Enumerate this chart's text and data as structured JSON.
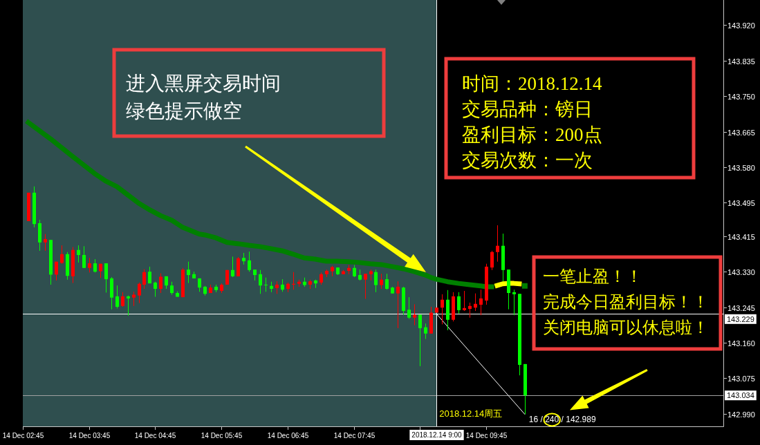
{
  "chart_data": {
    "type": "candlestick",
    "x": [
      "2018-12-14T02:50",
      "2018-12-14T02:55",
      "2018-12-14T03:00",
      "2018-12-14T03:05",
      "2018-12-14T03:10",
      "2018-12-14T03:15",
      "2018-12-14T03:20",
      "2018-12-14T03:25",
      "2018-12-14T03:30",
      "2018-12-14T03:35",
      "2018-12-14T03:40",
      "2018-12-14T03:45",
      "2018-12-14T03:50",
      "2018-12-14T03:55",
      "2018-12-14T04:00",
      "2018-12-14T04:05",
      "2018-12-14T04:10",
      "2018-12-14T04:15",
      "2018-12-14T04:20",
      "2018-12-14T04:25",
      "2018-12-14T04:30",
      "2018-12-14T04:35",
      "2018-12-14T04:40",
      "2018-12-14T04:45",
      "2018-12-14T04:50",
      "2018-12-14T04:55",
      "2018-12-14T05:00",
      "2018-12-14T05:05",
      "2018-12-14T05:10",
      "2018-12-14T05:15",
      "2018-12-14T05:20",
      "2018-12-14T05:25",
      "2018-12-14T05:30",
      "2018-12-14T05:35",
      "2018-12-14T05:40",
      "2018-12-14T05:45",
      "2018-12-14T05:50",
      "2018-12-14T05:55",
      "2018-12-14T06:00",
      "2018-12-14T06:05",
      "2018-12-14T06:10",
      "2018-12-14T06:15",
      "2018-12-14T06:20",
      "2018-12-14T06:25",
      "2018-12-14T06:30",
      "2018-12-14T06:35",
      "2018-12-14T06:40",
      "2018-12-14T06:45",
      "2018-12-14T06:50",
      "2018-12-14T06:55",
      "2018-12-14T07:00",
      "2018-12-14T07:05",
      "2018-12-14T07:10",
      "2018-12-14T07:15",
      "2018-12-14T07:20",
      "2018-12-14T07:25",
      "2018-12-14T07:30",
      "2018-12-14T07:35",
      "2018-12-14T07:40",
      "2018-12-14T07:45",
      "2018-12-14T07:50",
      "2018-12-14T07:55",
      "2018-12-14T08:00",
      "2018-12-14T08:05",
      "2018-12-14T08:10",
      "2018-12-14T08:15",
      "2018-12-14T08:20",
      "2018-12-14T08:25",
      "2018-12-14T08:30",
      "2018-12-14T08:35",
      "2018-12-14T08:40",
      "2018-12-14T08:45",
      "2018-12-14T08:50",
      "2018-12-14T08:55",
      "2018-12-14T09:00",
      "2018-12-14T09:05",
      "2018-12-14T09:10",
      "2018-12-14T09:15",
      "2018-12-14T09:20",
      "2018-12-14T09:25",
      "2018-12-14T09:30",
      "2018-12-14T09:35",
      "2018-12-14T09:40",
      "2018-12-14T09:45",
      "2018-12-14T09:50",
      "2018-12-14T09:55",
      "2018-12-14T10:00",
      "2018-12-14T10:05",
      "2018-12-14T10:10",
      "2018-12-14T10:15",
      "2018-12-14T10:20"
    ],
    "ohlc": [
      [
        143.451,
        143.519,
        143.451,
        143.519
      ],
      [
        143.519,
        143.534,
        143.436,
        143.444
      ],
      [
        143.446,
        143.454,
        143.38,
        143.4
      ],
      [
        143.4,
        143.42,
        143.38,
        143.408
      ],
      [
        143.406,
        143.406,
        143.299,
        143.323
      ],
      [
        143.323,
        143.354,
        143.309,
        143.354
      ],
      [
        143.351,
        143.393,
        143.349,
        143.372
      ],
      [
        143.372,
        143.377,
        143.311,
        143.32
      ],
      [
        143.319,
        143.389,
        143.303,
        143.382
      ],
      [
        143.382,
        143.393,
        143.352,
        143.37
      ],
      [
        143.37,
        143.391,
        143.339,
        143.339
      ],
      [
        143.339,
        143.363,
        143.328,
        143.35
      ],
      [
        143.35,
        143.36,
        143.328,
        143.33
      ],
      [
        143.331,
        143.349,
        143.315,
        143.349
      ],
      [
        143.35,
        143.35,
        143.28,
        143.312
      ],
      [
        143.314,
        143.317,
        143.24,
        143.268
      ],
      [
        143.271,
        143.297,
        143.242,
        143.246
      ],
      [
        143.248,
        143.281,
        143.246,
        143.271
      ],
      [
        143.271,
        143.273,
        143.225,
        143.266
      ],
      [
        143.268,
        143.282,
        143.248,
        143.275
      ],
      [
        143.273,
        143.304,
        143.255,
        143.301
      ],
      [
        143.299,
        143.336,
        143.289,
        143.329
      ],
      [
        143.33,
        143.342,
        143.302,
        143.302
      ],
      [
        143.304,
        143.306,
        143.27,
        143.289
      ],
      [
        143.289,
        143.326,
        143.279,
        143.318
      ],
      [
        143.319,
        143.319,
        143.289,
        143.297
      ],
      [
        143.297,
        143.306,
        143.275,
        143.279
      ],
      [
        143.279,
        143.283,
        143.27,
        143.27
      ],
      [
        143.269,
        143.339,
        143.269,
        143.335
      ],
      [
        143.335,
        143.354,
        143.303,
        143.322
      ],
      [
        143.324,
        143.33,
        143.314,
        143.314
      ],
      [
        143.314,
        143.314,
        143.282,
        143.292
      ],
      [
        143.294,
        143.296,
        143.273,
        143.277
      ],
      [
        143.279,
        143.299,
        143.279,
        143.292
      ],
      [
        143.294,
        143.299,
        143.281,
        143.286
      ],
      [
        143.284,
        143.302,
        143.279,
        143.299
      ],
      [
        143.299,
        143.334,
        143.299,
        143.334
      ],
      [
        143.334,
        143.366,
        143.317,
        143.319
      ],
      [
        143.319,
        143.365,
        143.319,
        143.362
      ],
      [
        143.363,
        143.375,
        143.347,
        143.355
      ],
      [
        143.357,
        143.378,
        143.33,
        143.334
      ],
      [
        143.335,
        143.335,
        143.309,
        143.322
      ],
      [
        143.324,
        143.334,
        143.277,
        143.297
      ],
      [
        143.299,
        143.316,
        143.282,
        143.298
      ],
      [
        143.296,
        143.306,
        143.281,
        143.289
      ],
      [
        143.291,
        143.307,
        143.277,
        143.299
      ],
      [
        143.299,
        143.312,
        143.282,
        143.287
      ],
      [
        143.289,
        143.304,
        143.281,
        143.301
      ],
      [
        143.299,
        143.329,
        143.287,
        143.301
      ],
      [
        143.301,
        143.311,
        143.294,
        143.306
      ],
      [
        143.306,
        143.316,
        143.294,
        143.298
      ],
      [
        143.299,
        143.311,
        143.289,
        143.307
      ],
      [
        143.309,
        143.311,
        143.291,
        143.302
      ],
      [
        143.304,
        143.328,
        143.299,
        143.324
      ],
      [
        143.324,
        143.335,
        143.317,
        143.332
      ],
      [
        143.331,
        143.344,
        143.319,
        143.341
      ],
      [
        143.34,
        143.34,
        143.322,
        143.324
      ],
      [
        143.324,
        143.334,
        143.324,
        143.331
      ],
      [
        143.332,
        143.346,
        143.324,
        143.339
      ],
      [
        143.339,
        143.346,
        143.317,
        143.319
      ],
      [
        143.322,
        143.335,
        143.309,
        143.311
      ],
      [
        143.311,
        143.325,
        143.265,
        143.325
      ],
      [
        143.324,
        143.335,
        143.309,
        143.331
      ],
      [
        143.329,
        143.335,
        143.281,
        143.298
      ],
      [
        143.298,
        143.325,
        143.289,
        143.311
      ],
      [
        143.312,
        143.325,
        143.287,
        143.289
      ],
      [
        143.292,
        143.294,
        143.278,
        143.278
      ],
      [
        143.278,
        143.307,
        143.195,
        143.294
      ],
      [
        143.292,
        143.294,
        143.227,
        143.236
      ],
      [
        143.239,
        143.269,
        143.217,
        143.22
      ],
      [
        143.22,
        143.252,
        143.202,
        143.227
      ],
      [
        143.227,
        143.227,
        143.104,
        143.195
      ],
      [
        143.197,
        143.206,
        143.169,
        143.182
      ],
      [
        143.182,
        143.246,
        143.182,
        143.232
      ],
      [
        143.232,
        143.244,
        143.232,
        143.244
      ],
      [
        143.244,
        143.276,
        143.204,
        143.263
      ],
      [
        143.263,
        143.286,
        143.19,
        143.215
      ],
      [
        143.215,
        143.281,
        143.211,
        143.271
      ],
      [
        143.271,
        143.281,
        143.23,
        143.238
      ],
      [
        143.238,
        143.284,
        143.236,
        143.243
      ],
      [
        143.241,
        143.256,
        143.22,
        143.248
      ],
      [
        143.244,
        143.278,
        143.236,
        143.253
      ],
      [
        143.251,
        143.287,
        143.226,
        143.266
      ],
      [
        143.261,
        143.349,
        143.251,
        143.342
      ],
      [
        143.34,
        143.38,
        143.334,
        143.377
      ],
      [
        143.377,
        143.441,
        143.354,
        143.392
      ],
      [
        143.392,
        143.421,
        143.307,
        143.334
      ],
      [
        143.335,
        143.335,
        143.24,
        143.279
      ],
      [
        143.281,
        143.287,
        143.226,
        143.276
      ],
      [
        143.277,
        143.277,
        143.082,
        143.107
      ],
      [
        143.109,
        143.109,
        142.989,
        143.034
      ]
    ],
    "colors": [
      "#ff0000",
      "#00ff00",
      "#00ff00",
      "#ff0000",
      "#00ff00",
      "#ff0000",
      "#ff0000",
      "#00ff00",
      "#ff0000",
      "#00ff00",
      "#00ff00",
      "#ff0000",
      "#00ff00",
      "#ff0000",
      "#00ff00",
      "#00ff00",
      "#00ff00",
      "#ff0000",
      "#00ff00",
      "#ff0000",
      "#ff0000",
      "#ff0000",
      "#00ff00",
      "#00ff00",
      "#ff0000",
      "#00ff00",
      "#00ff00",
      "#00ff00",
      "#ff0000",
      "#00ff00",
      "#00ff00",
      "#00ff00",
      "#00ff00",
      "#ff0000",
      "#00ff00",
      "#ff0000",
      "#ff0000",
      "#00ff00",
      "#ff0000",
      "#00ff00",
      "#00ff00",
      "#00ff00",
      "#00ff00",
      "#00ff00",
      "#00ff00",
      "#ff0000",
      "#00ff00",
      "#ff0000",
      "#ff0000",
      "#ff0000",
      "#00ff00",
      "#ff0000",
      "#00ff00",
      "#ff0000",
      "#ff0000",
      "#ff0000",
      "#00ff00",
      "#ff0000",
      "#ff0000",
      "#00ff00",
      "#00ff00",
      "#ff0000",
      "#ff0000",
      "#00ff00",
      "#ff0000",
      "#00ff00",
      "#00ff00",
      "#ff0000",
      "#00ff00",
      "#00ff00",
      "#ff0000",
      "#00ff00",
      "#00ff00",
      "#ff0000",
      "#ff0000",
      "#ff0000",
      "#00ff00",
      "#ff0000",
      "#00ff00",
      "#ff0000",
      "#ff0000",
      "#ff0000",
      "#ff0000",
      "#ff0000",
      "#ff0000",
      "#ff0000",
      "#00ff00",
      "#00ff00",
      "#00ff00",
      "#00ff00",
      "#00ff00"
    ],
    "series": [
      {
        "type": "line",
        "color": "#008000",
        "x": [
          "2018-12-14T02:50",
          "2018-12-14T03:10",
          "2018-12-14T03:30",
          "2018-12-14T03:50",
          "2018-12-14T04:00",
          "2018-12-14T04:10",
          "2018-12-14T04:20",
          "2018-12-14T04:30",
          "2018-12-14T04:40",
          "2018-12-14T04:50",
          "2018-12-14T05:00",
          "2018-12-14T05:10",
          "2018-12-14T05:25",
          "2018-12-14T05:30",
          "2018-12-14T05:40",
          "2018-12-14T05:50",
          "2018-12-14T06:00",
          "2018-12-14T06:10",
          "2018-12-14T06:20",
          "2018-12-14T06:30",
          "2018-12-14T06:40",
          "2018-12-14T06:50",
          "2018-12-14T07:00",
          "2018-12-14T07:10",
          "2018-12-14T07:20",
          "2018-12-14T07:30",
          "2018-12-14T07:40",
          "2018-12-14T07:50",
          "2018-12-14T08:00",
          "2018-12-14T08:10",
          "2018-12-14T08:20",
          "2018-12-14T08:30",
          "2018-12-14T08:40",
          "2018-12-14T08:50",
          "2018-12-14T08:55",
          "2018-12-14T09:00",
          "2018-12-14T09:10",
          "2018-12-14T09:20",
          "2018-12-14T09:30",
          "2018-12-14T09:40",
          "2018-12-14T09:45",
          "2018-12-14T09:50"
        ],
        "values": [
          143.687,
          143.648,
          143.606,
          143.565,
          143.547,
          143.534,
          143.514,
          143.494,
          143.478,
          143.464,
          143.453,
          143.436,
          143.42,
          143.418,
          143.411,
          143.4,
          143.397,
          143.393,
          143.39,
          143.385,
          143.38,
          143.372,
          143.363,
          143.36,
          143.355,
          143.355,
          143.354,
          143.352,
          143.349,
          143.347,
          143.342,
          143.337,
          143.33,
          143.322,
          143.316,
          143.312,
          143.306,
          143.302,
          143.299,
          143.296,
          143.294,
          143.294
        ]
      },
      {
        "type": "line",
        "color": "#ffff00",
        "x": [
          "2018-12-14T09:55",
          "2018-12-14T10:00",
          "2018-12-14T10:05",
          "2018-12-14T10:10",
          "2018-12-14T10:15"
        ],
        "values": [
          143.297,
          143.301,
          143.302,
          143.302,
          143.301
        ]
      },
      {
        "type": "line",
        "color": "#008000",
        "marker": "square",
        "x": [
          "2018-12-14T10:20"
        ],
        "values": [
          143.296
        ]
      },
      {
        "type": "line",
        "color": "#ffffff",
        "x": [
          "2018-12-14T09:00",
          "2018-12-14T10:20"
        ],
        "values": [
          143.229,
          142.989
        ]
      }
    ],
    "xlim": [
      "2018-12-14T02:45",
      "2018-12-14T13:20"
    ],
    "xticks": [
      {
        "value": "2018-12-14T02:45",
        "label": "14 Dec 02:45"
      },
      {
        "value": "2018-12-14T03:45",
        "label": "14 Dec 03:45"
      },
      {
        "value": "2018-12-14T04:45",
        "label": "14 Dec 04:45"
      },
      {
        "value": "2018-12-14T05:45",
        "label": "14 Dec 05:45"
      },
      {
        "value": "2018-12-14T06:45",
        "label": "14 Dec 06:45"
      },
      {
        "value": "2018-12-14T07:45",
        "label": "14 Dec 07:45"
      },
      {
        "value": "2018-12-14T08:45",
        "label": null
      },
      {
        "value": "2018-12-14T09:45",
        "label": "14 Dec 09:45"
      }
    ],
    "ylim": [
      142.96,
      143.98
    ],
    "yticks": [
      {
        "value": 143.92,
        "label": "143.920"
      },
      143.835,
      {
        "value": 143.75,
        "label": "143.750"
      },
      143.665,
      {
        "value": 143.58,
        "label": "143.580"
      },
      143.495,
      143.415,
      {
        "value": 143.33,
        "label": "143.330"
      },
      143.245,
      {
        "value": 143.16,
        "label": "143.160"
      },
      143.075,
      {
        "value": 142.99,
        "label": "142.990"
      }
    ],
    "bands": [
      {
        "axis": "x",
        "from": "2018-12-14T02:45",
        "to": "2018-12-14T09:00",
        "color": "#2f4f4f"
      }
    ],
    "ref_lines": [
      {
        "axis": "y",
        "value": 143.229,
        "label": "143.229",
        "color": "#ffffff"
      },
      {
        "axis": "y",
        "value": 143.034,
        "label": "143.034",
        "color": "#a0a0a0"
      },
      {
        "axis": "x",
        "value": "2018-12-14T09:00",
        "label": "2018.12.14 9:00",
        "color": "#ffffff"
      }
    ],
    "annotations": [
      "进入黑屏交易时间",
      "绿色提示做空",
      "时间：2018.12.14",
      "交易品种：镑日",
      "盈利目标：200点",
      "交易次数：一次",
      "一笔止盈！！",
      "完成今日盈利目标！！",
      "关闭电脑可以休息啦！",
      {
        "text": "2018.12.14周五",
        "x": "2018-12-14T09:00",
        "y": 142.99
      },
      {
        "text": "16 / 240 / 142.989",
        "x": "2018-12-14T10:20",
        "y": 142.989
      }
    ]
  }
}
